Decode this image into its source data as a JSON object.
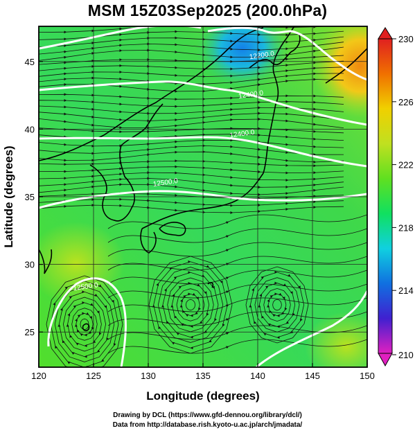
{
  "title": "MSM 15Z03Sep2025 (200.0hPa)",
  "xlabel": "Longitude (degrees)",
  "ylabel": "Latitude  (degrees)",
  "credits": {
    "line1": "Drawing by DCL (https://www.gfd-dennou.org/library/dcl/)",
    "line2": "Data from http://database.rish.kyoto-u.ac.jp/arch/jmadata/"
  },
  "chart_data": {
    "type": "heatmap",
    "xlim": [
      120,
      150
    ],
    "ylim": [
      22.4,
      47.6
    ],
    "x_ticks": [
      "120",
      "125",
      "130",
      "135",
      "140",
      "145",
      "150"
    ],
    "y_ticks": [
      "25",
      "30",
      "35",
      "40",
      "45"
    ],
    "grid": true,
    "colorbar": {
      "min": 210,
      "max": 230,
      "tick_labels": [
        "230",
        "226",
        "222",
        "218",
        "214",
        "210"
      ],
      "colors": [
        "#e020c0",
        "#4020d0",
        "#1070e0",
        "#10d0e0",
        "#10e060",
        "#60e020",
        "#c0e020",
        "#f0d000",
        "#f07000",
        "#e02020"
      ]
    },
    "height_contours": [
      {
        "label": "12200.0",
        "lon": 140.4,
        "lat": 45.3
      },
      {
        "label": "12400.0",
        "lon": 139.4,
        "lat": 42.4
      },
      {
        "label": "12400.0",
        "lon": 138.6,
        "lat": 39.5
      },
      {
        "label": "12500.0",
        "lon": 131.6,
        "lat": 35.9
      },
      {
        "label": "12500.0",
        "lon": 124.3,
        "lat": 28.2
      }
    ]
  }
}
